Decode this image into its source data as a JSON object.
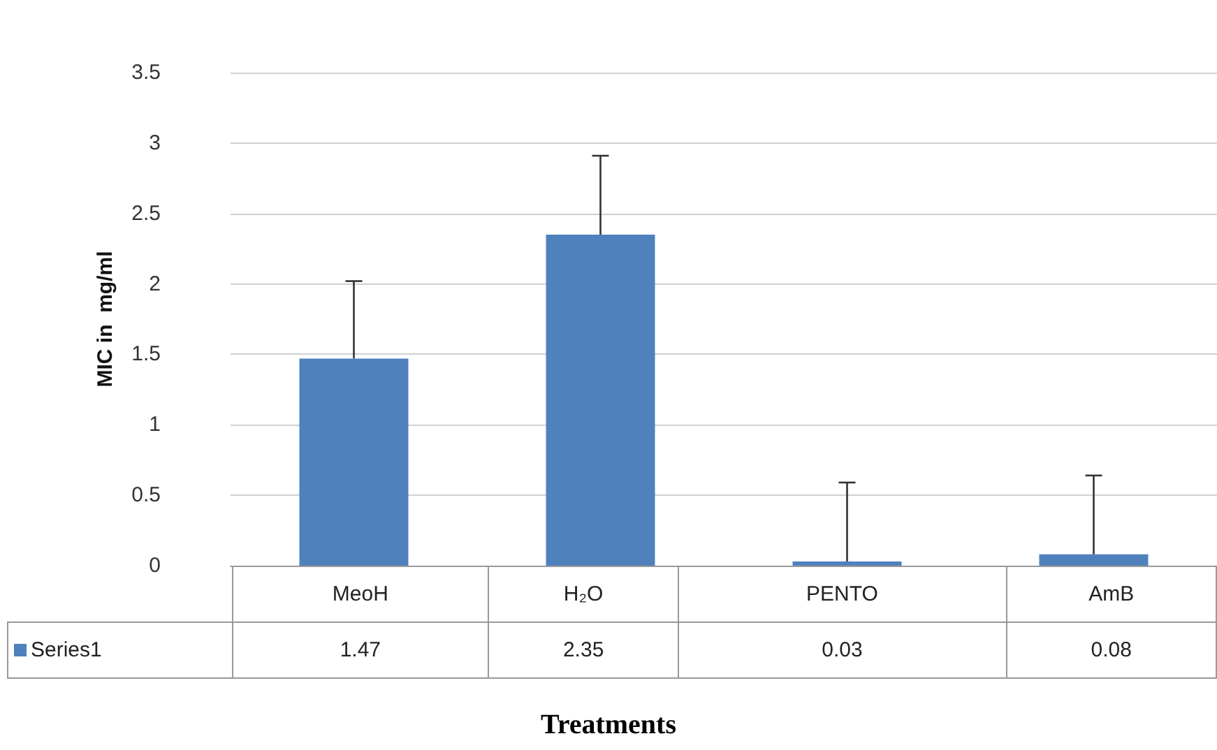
{
  "chart_data": {
    "type": "bar",
    "xlabel": "Treatments",
    "ylabel": "MIC in  mg/ml",
    "categories": [
      "MeoH",
      "H₂O",
      "PENTO",
      "AmB"
    ],
    "series": [
      {
        "name": "Series1",
        "color": "#4f81bd",
        "values": [
          1.47,
          2.35,
          0.03,
          0.08
        ],
        "errors": [
          [
            1.47,
            2.02
          ],
          [
            2.35,
            2.91
          ],
          [
            0.03,
            0.59
          ],
          [
            0.08,
            0.64
          ]
        ]
      }
    ],
    "ylim": [
      0,
      3.5
    ],
    "yticks": [
      0,
      0.5,
      1,
      1.5,
      2,
      2.5,
      3,
      3.5
    ],
    "grid": "y",
    "data_labels": true
  }
}
